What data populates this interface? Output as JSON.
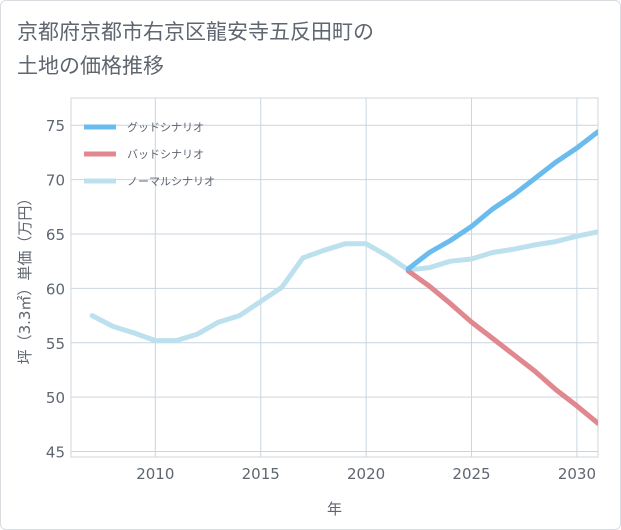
{
  "chart_data": {
    "type": "line",
    "title_lines": [
      "京都府京都市右京区龍安寺五反田町の",
      "土地の価格推移"
    ],
    "xlabel": "年",
    "ylabel": "坪（3.3㎡）単価（万円）",
    "xlim": [
      2006,
      2031
    ],
    "ylim": [
      44.5,
      77.5
    ],
    "xticks": [
      2010,
      2015,
      2020,
      2025,
      2030
    ],
    "yticks": [
      45,
      50,
      55,
      60,
      65,
      70,
      75
    ],
    "grid": true,
    "legend_position": "top-left",
    "series": [
      {
        "name": "グッドシナリオ",
        "color": "#6bbcee",
        "x": [
          2022,
          2023,
          2024,
          2025,
          2026,
          2027,
          2028,
          2029,
          2030,
          2031
        ],
        "y": [
          61.8,
          63.3,
          64.4,
          65.7,
          67.3,
          68.6,
          70.1,
          71.6,
          72.9,
          74.4
        ]
      },
      {
        "name": "バッドシナリオ",
        "color": "#e0878f",
        "x": [
          2022,
          2023,
          2024,
          2025,
          2026,
          2027,
          2028,
          2029,
          2030,
          2031
        ],
        "y": [
          61.6,
          60.2,
          58.6,
          56.9,
          55.4,
          53.9,
          52.4,
          50.7,
          49.2,
          47.6
        ]
      },
      {
        "name": "ノーマルシナリオ",
        "color": "#bde0ee",
        "x": [
          2007,
          2008,
          2009,
          2010,
          2011,
          2012,
          2013,
          2014,
          2015,
          2016,
          2017,
          2018,
          2019,
          2020,
          2021,
          2022,
          2023,
          2024,
          2025,
          2026,
          2027,
          2028,
          2029,
          2030,
          2031
        ],
        "y": [
          57.5,
          56.5,
          55.9,
          55.2,
          55.2,
          55.8,
          56.9,
          57.5,
          58.8,
          60.1,
          62.8,
          63.5,
          64.1,
          64.1,
          63.0,
          61.7,
          61.9,
          62.5,
          62.7,
          63.3,
          63.6,
          64.0,
          64.3,
          64.8,
          65.2
        ]
      }
    ]
  }
}
